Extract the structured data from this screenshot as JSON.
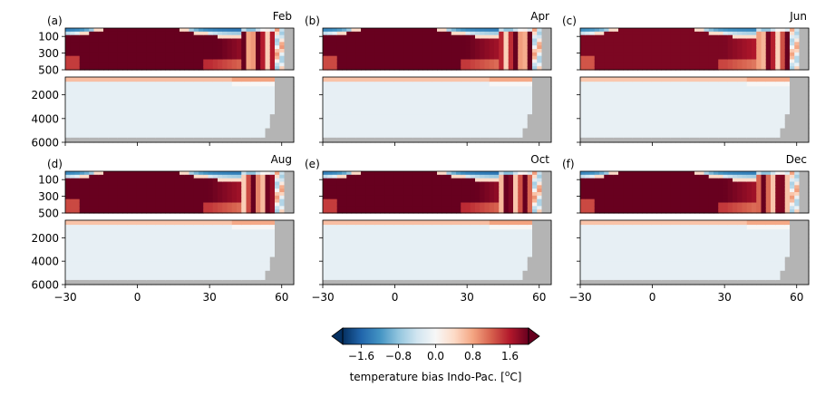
{
  "chart_data": {
    "type": "heatmap",
    "colorbar": {
      "label": "temperature bias Indo-Pac. [",
      "label_unit_sup": "o",
      "label_unit_suffix": "C]",
      "ticks": [
        "−1.6",
        "−0.8",
        "0.0",
        "0.8",
        "1.6"
      ],
      "tick_values": [
        -1.6,
        -0.8,
        0.0,
        0.8,
        1.6
      ],
      "range": [
        -2.0,
        2.0
      ],
      "extend": "both",
      "colormap": "RdBu_r"
    },
    "x_axis": {
      "range": [
        -30,
        65
      ],
      "ticks": [
        -30,
        0,
        30,
        60
      ],
      "tick_labels": [
        "−30",
        "0",
        "30",
        "60"
      ]
    },
    "y_axis_upper": {
      "range": [
        0,
        500
      ],
      "ticks": [
        100,
        300,
        500
      ],
      "tick_labels": [
        "100",
        "300",
        "500"
      ]
    },
    "y_axis_lower": {
      "range": [
        500,
        6000
      ],
      "ticks": [
        2000,
        4000,
        6000
      ],
      "tick_labels": [
        "2000",
        "4000",
        "6000"
      ]
    },
    "panels": [
      {
        "label": "(a)",
        "month": "Feb",
        "intensity": 1.0
      },
      {
        "label": "(b)",
        "month": "Apr",
        "intensity": 0.95
      },
      {
        "label": "(c)",
        "month": "Jun",
        "intensity": 0.9
      },
      {
        "label": "(d)",
        "month": "Aug",
        "intensity": 0.95
      },
      {
        "label": "(e)",
        "month": "Oct",
        "intensity": 1.0
      },
      {
        "label": "(f)",
        "month": "Dec",
        "intensity": 0.95
      }
    ],
    "colors": {
      "land_mask": "#b4b4b4",
      "cmap_stops": [
        "#053061",
        "#2166ac",
        "#4393c3",
        "#92c5de",
        "#d1e5f0",
        "#f7f7f7",
        "#fddbc7",
        "#f4a582",
        "#d6604d",
        "#b2182b",
        "#67001f"
      ]
    }
  }
}
